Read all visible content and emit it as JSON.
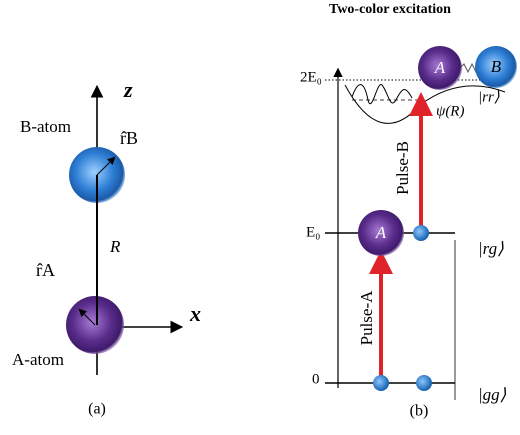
{
  "panel_a": {
    "z_label": "z",
    "x_label": "x",
    "b_atom": "B-atom",
    "a_atom": "A-atom",
    "r_b": "r̂B",
    "r_a": "r̂A",
    "distance": "R",
    "caption": "(a)"
  },
  "panel_b": {
    "title": "Two-color excitation",
    "level_2e0": "2E₀",
    "level_e0": "E₀",
    "level_0": "0",
    "ket_gg": "|gg⟩",
    "ket_rg": "|rg⟩",
    "ket_rr": "|rr⟩",
    "pulse_a": "Pulse-A",
    "pulse_b": "Pulse-B",
    "atom_a_mid": "A",
    "atom_a_top": "A",
    "atom_b_top": "B",
    "wavefunction": "ψ(R)",
    "caption": "(b)"
  }
}
